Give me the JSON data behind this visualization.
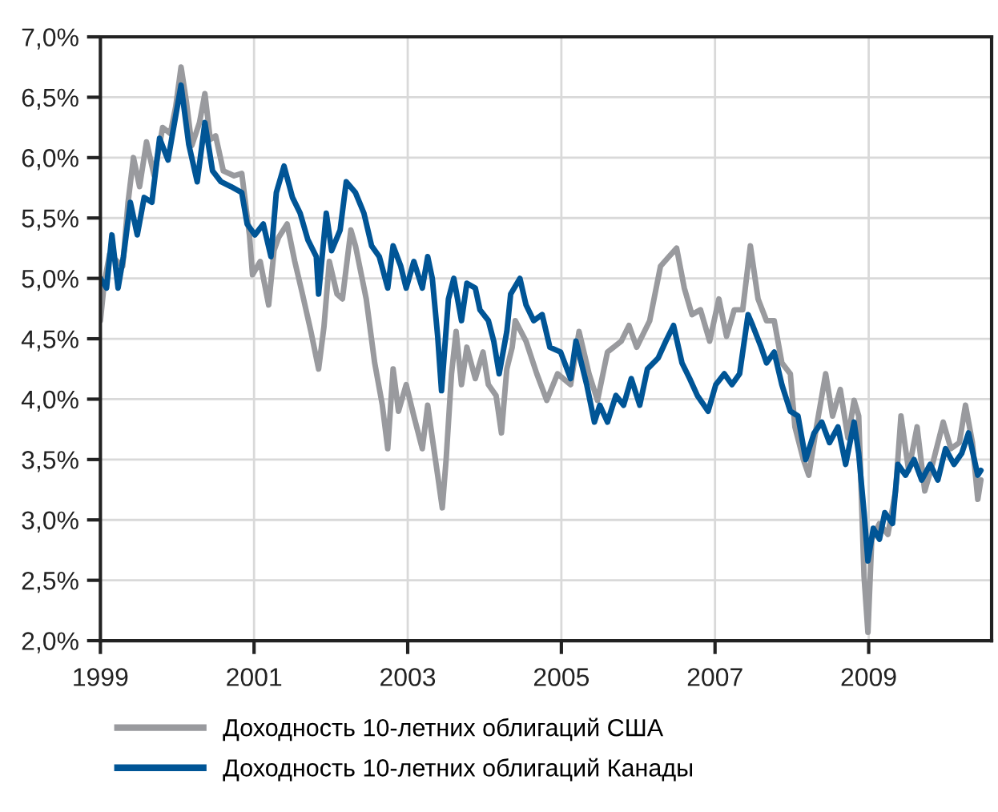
{
  "chart_data": {
    "type": "line",
    "xlim": [
      1999,
      2010.6
    ],
    "xticks": [
      1999,
      2001,
      2003,
      2005,
      2007,
      2009
    ],
    "ylim": [
      2.0,
      7.0
    ],
    "yticks": [
      {
        "value": 2.0,
        "label": "2,0%"
      },
      {
        "value": 2.5,
        "label": "2,5%"
      },
      {
        "value": 3.0,
        "label": "3,0%"
      },
      {
        "value": 3.5,
        "label": "3,5%"
      },
      {
        "value": 4.0,
        "label": "4,0%"
      },
      {
        "value": 4.5,
        "label": "4,5%"
      },
      {
        "value": 5.0,
        "label": "5,0%"
      },
      {
        "value": 5.5,
        "label": "5,5%"
      },
      {
        "value": 6.0,
        "label": "6,0%"
      },
      {
        "value": 6.5,
        "label": "6,5%"
      },
      {
        "value": 7.0,
        "label": "7,0%"
      }
    ],
    "grid": true,
    "legend": "bottom left",
    "marker": "none",
    "line_style": "solid",
    "series": [
      {
        "name": "Доходность 10-летних облигаций США",
        "color": "#999a9e",
        "x": [
          1999.0,
          1999.05,
          1999.12,
          1999.29,
          1999.36,
          1999.43,
          1999.51,
          1999.6,
          1999.7,
          1999.81,
          1999.91,
          1999.98,
          2000.05,
          2000.12,
          2000.19,
          2000.29,
          2000.36,
          2000.43,
          2000.5,
          2000.6,
          2000.74,
          2000.84,
          2000.94,
          2000.98,
          2001.08,
          2001.19,
          2001.26,
          2001.32,
          2001.43,
          2001.53,
          2001.63,
          2001.74,
          2001.84,
          2001.91,
          2001.98,
          2002.08,
          2002.15,
          2002.26,
          2002.32,
          2002.46,
          2002.57,
          2002.67,
          2002.74,
          2002.81,
          2002.88,
          2002.98,
          2003.08,
          2003.19,
          2003.26,
          2003.32,
          2003.39,
          2003.45,
          2003.5,
          2003.57,
          2003.63,
          2003.7,
          2003.77,
          2003.88,
          2003.98,
          2004.05,
          2004.15,
          2004.22,
          2004.29,
          2004.36,
          2004.4,
          2004.54,
          2004.68,
          2004.81,
          2004.95,
          2005.12,
          2005.23,
          2005.36,
          2005.47,
          2005.6,
          2005.78,
          2005.88,
          2005.98,
          2006.15,
          2006.29,
          2006.4,
          2006.5,
          2006.6,
          2006.7,
          2006.81,
          2006.93,
          2007.05,
          2007.15,
          2007.25,
          2007.36,
          2007.46,
          2007.56,
          2007.67,
          2007.77,
          2007.87,
          2007.98,
          2008.04,
          2008.15,
          2008.22,
          2008.32,
          2008.44,
          2008.53,
          2008.63,
          2008.73,
          2008.81,
          2008.87,
          2008.94,
          2008.99,
          2009.04,
          2009.14,
          2009.25,
          2009.35,
          2009.42,
          2009.52,
          2009.63,
          2009.73,
          2009.83,
          2009.97,
          2010.07,
          2010.18,
          2010.26,
          2010.35,
          2010.42,
          2010.46
        ],
        "values": [
          4.65,
          4.96,
          5.2,
          5.1,
          5.63,
          6.0,
          5.76,
          6.13,
          5.85,
          6.25,
          6.2,
          6.42,
          6.75,
          6.46,
          6.1,
          6.29,
          6.53,
          6.15,
          6.18,
          5.89,
          5.85,
          5.87,
          5.36,
          5.03,
          5.14,
          4.78,
          5.23,
          5.34,
          5.45,
          5.14,
          4.87,
          4.56,
          4.25,
          4.6,
          5.14,
          4.87,
          4.83,
          5.4,
          5.27,
          4.83,
          4.3,
          3.95,
          3.59,
          4.25,
          3.9,
          4.12,
          3.86,
          3.59,
          3.95,
          3.68,
          3.37,
          3.1,
          3.5,
          4.21,
          4.56,
          4.12,
          4.43,
          4.17,
          4.39,
          4.12,
          4.03,
          3.72,
          4.25,
          4.43,
          4.65,
          4.48,
          4.21,
          3.99,
          4.21,
          4.12,
          4.56,
          4.21,
          3.99,
          4.39,
          4.48,
          4.61,
          4.43,
          4.65,
          5.1,
          5.18,
          5.25,
          4.92,
          4.7,
          4.74,
          4.48,
          4.83,
          4.52,
          4.74,
          4.74,
          5.27,
          4.83,
          4.65,
          4.65,
          4.3,
          4.21,
          3.77,
          3.5,
          3.37,
          3.77,
          4.21,
          3.86,
          4.08,
          3.68,
          3.99,
          3.86,
          2.53,
          2.07,
          2.84,
          2.97,
          2.88,
          3.24,
          3.86,
          3.41,
          3.77,
          3.24,
          3.46,
          3.81,
          3.59,
          3.64,
          3.95,
          3.64,
          3.17,
          3.33
        ]
      },
      {
        "name": "Доходность 10-летних облигаций Канады",
        "color": "#005596",
        "x": [
          1999.0,
          1999.08,
          1999.15,
          1999.23,
          1999.3,
          1999.39,
          1999.48,
          1999.57,
          1999.67,
          1999.77,
          1999.88,
          1999.94,
          2000.05,
          2000.15,
          2000.26,
          2000.36,
          2000.46,
          2000.57,
          2000.7,
          2000.84,
          2000.91,
          2001.01,
          2001.12,
          2001.22,
          2001.29,
          2001.39,
          2001.5,
          2001.6,
          2001.7,
          2001.81,
          2001.84,
          2001.94,
          2002.01,
          2002.12,
          2002.2,
          2002.32,
          2002.43,
          2002.53,
          2002.63,
          2002.74,
          2002.81,
          2002.91,
          2002.98,
          2003.08,
          2003.19,
          2003.26,
          2003.32,
          2003.39,
          2003.44,
          2003.53,
          2003.6,
          2003.7,
          2003.77,
          2003.88,
          2003.94,
          2004.05,
          2004.12,
          2004.19,
          2004.29,
          2004.34,
          2004.46,
          2004.54,
          2004.64,
          2004.75,
          2004.85,
          2004.99,
          2005.12,
          2005.19,
          2005.33,
          2005.43,
          2005.5,
          2005.6,
          2005.71,
          2005.81,
          2005.91,
          2006.02,
          2006.12,
          2006.26,
          2006.36,
          2006.46,
          2006.57,
          2006.67,
          2006.77,
          2006.91,
          2007.01,
          2007.12,
          2007.22,
          2007.32,
          2007.43,
          2007.49,
          2007.6,
          2007.67,
          2007.77,
          2007.87,
          2007.98,
          2008.08,
          2008.18,
          2008.29,
          2008.39,
          2008.49,
          2008.6,
          2008.7,
          2008.81,
          2008.87,
          2008.94,
          2008.99,
          2009.06,
          2009.14,
          2009.21,
          2009.31,
          2009.38,
          2009.48,
          2009.59,
          2009.69,
          2009.8,
          2009.9,
          2010.0,
          2010.11,
          2010.21,
          2010.3,
          2010.42,
          2010.46
        ],
        "values": [
          5.0,
          4.92,
          5.36,
          4.92,
          5.18,
          5.63,
          5.36,
          5.67,
          5.63,
          6.16,
          5.98,
          6.2,
          6.6,
          6.11,
          5.8,
          6.29,
          5.89,
          5.8,
          5.76,
          5.71,
          5.45,
          5.36,
          5.45,
          5.18,
          5.71,
          5.93,
          5.67,
          5.54,
          5.32,
          5.18,
          4.87,
          5.54,
          5.23,
          5.4,
          5.8,
          5.71,
          5.54,
          5.27,
          5.18,
          4.92,
          5.27,
          5.1,
          4.92,
          5.14,
          4.92,
          5.18,
          5.0,
          4.52,
          4.07,
          4.83,
          5.0,
          4.65,
          4.96,
          4.92,
          4.74,
          4.65,
          4.48,
          4.21,
          4.56,
          4.87,
          5.0,
          4.78,
          4.65,
          4.7,
          4.43,
          4.39,
          4.17,
          4.48,
          4.12,
          3.81,
          3.95,
          3.81,
          4.03,
          3.95,
          4.17,
          3.95,
          4.25,
          4.34,
          4.48,
          4.61,
          4.3,
          4.17,
          4.03,
          3.9,
          4.12,
          4.21,
          4.12,
          4.21,
          4.7,
          4.61,
          4.43,
          4.3,
          4.39,
          4.12,
          3.9,
          3.86,
          3.5,
          3.72,
          3.81,
          3.64,
          3.77,
          3.46,
          3.81,
          3.55,
          3.06,
          2.66,
          2.93,
          2.84,
          3.06,
          2.97,
          3.46,
          3.37,
          3.5,
          3.33,
          3.46,
          3.33,
          3.59,
          3.46,
          3.55,
          3.72,
          3.37,
          3.41
        ]
      }
    ]
  }
}
